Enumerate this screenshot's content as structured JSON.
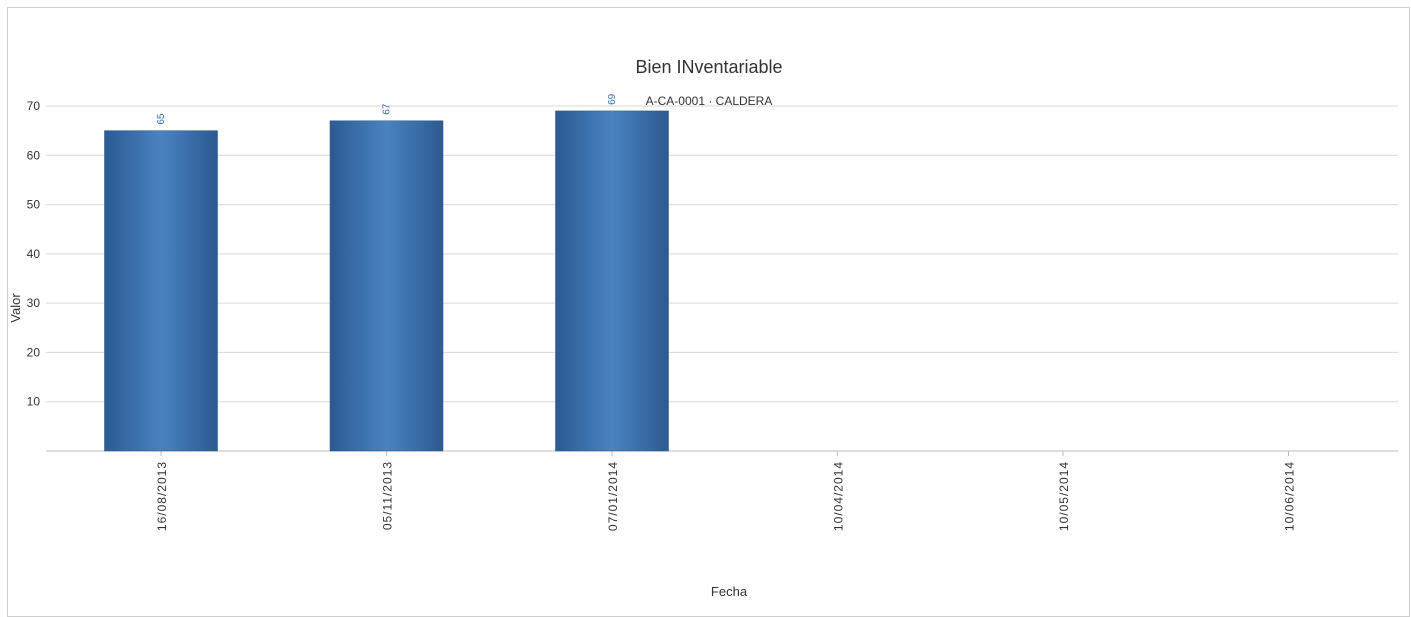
{
  "chart_data": {
    "type": "bar",
    "title": "Bien INventariable",
    "subtitle": "A-CA-0001 · CALDERA",
    "xlabel": "Fecha",
    "ylabel": "Valor",
    "categories": [
      "16/08/2013",
      "05/11/2013",
      "07/01/2014",
      "10/04/2014",
      "10/05/2014",
      "10/06/2014"
    ],
    "values": [
      65,
      67,
      69,
      null,
      null,
      null
    ],
    "data_labels": [
      "65",
      "67",
      "69",
      "",
      "",
      ""
    ],
    "yticks": [
      10,
      20,
      30,
      40,
      50,
      60,
      70
    ],
    "ylim": [
      0,
      70
    ],
    "grid": true,
    "colors": {
      "bar": "#3b6ea8",
      "bar_light": "#4a82c0",
      "bar_dark": "#2c5a91",
      "grid": "#d9d9d9",
      "label": "#3a6fb0"
    }
  }
}
